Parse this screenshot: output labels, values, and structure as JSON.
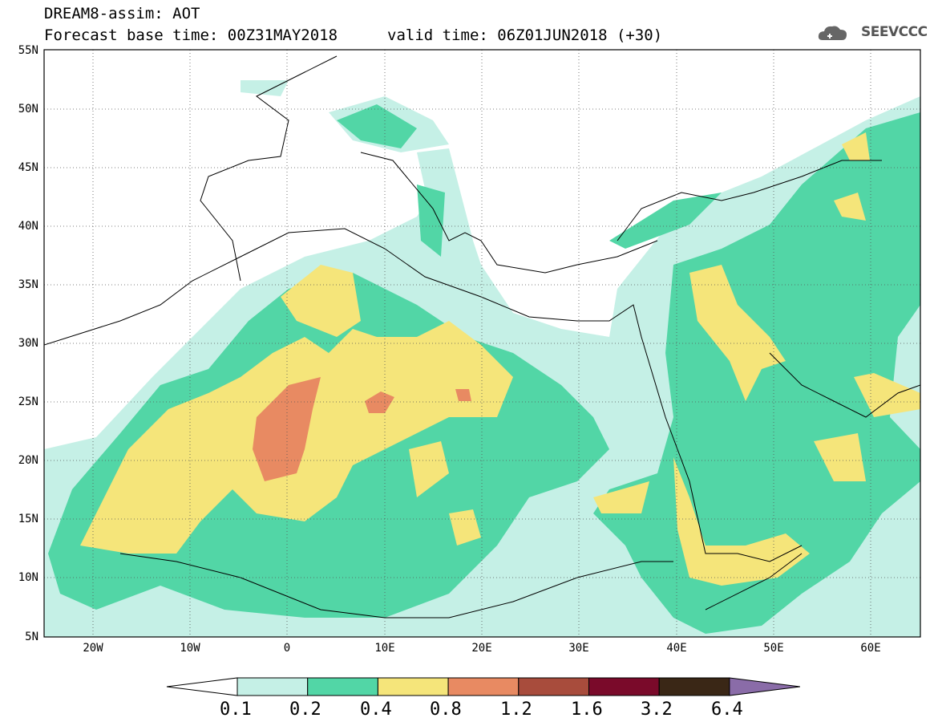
{
  "header": {
    "title": "DREAM8-assim: AOT",
    "base_time": "Forecast base time: 00Z31MAY2018",
    "valid_time": "valid time: 06Z01JUN2018 (+30)",
    "logo_text": "SEEVCCC"
  },
  "map": {
    "lat_labels": [
      "55N",
      "50N",
      "45N",
      "40N",
      "35N",
      "30N",
      "25N",
      "20N",
      "15N",
      "10N",
      "5N"
    ],
    "lon_labels": [
      "20W",
      "10W",
      "0",
      "10E",
      "20E",
      "30E",
      "40E",
      "50E",
      "60E"
    ],
    "extent": {
      "lon": [
        -25,
        65
      ],
      "lat": [
        5,
        55
      ]
    }
  },
  "colorbar": {
    "labels": [
      "0.1",
      "0.2",
      "0.4",
      "0.8",
      "1.2",
      "1.6",
      "3.2",
      "6.4"
    ],
    "colors": [
      "#ffffff",
      "#c5f0e6",
      "#52d6a6",
      "#f5e57a",
      "#e88a62",
      "#a84c3c",
      "#7a0a2a",
      "#3a2716",
      "#8a6ca8"
    ]
  }
}
